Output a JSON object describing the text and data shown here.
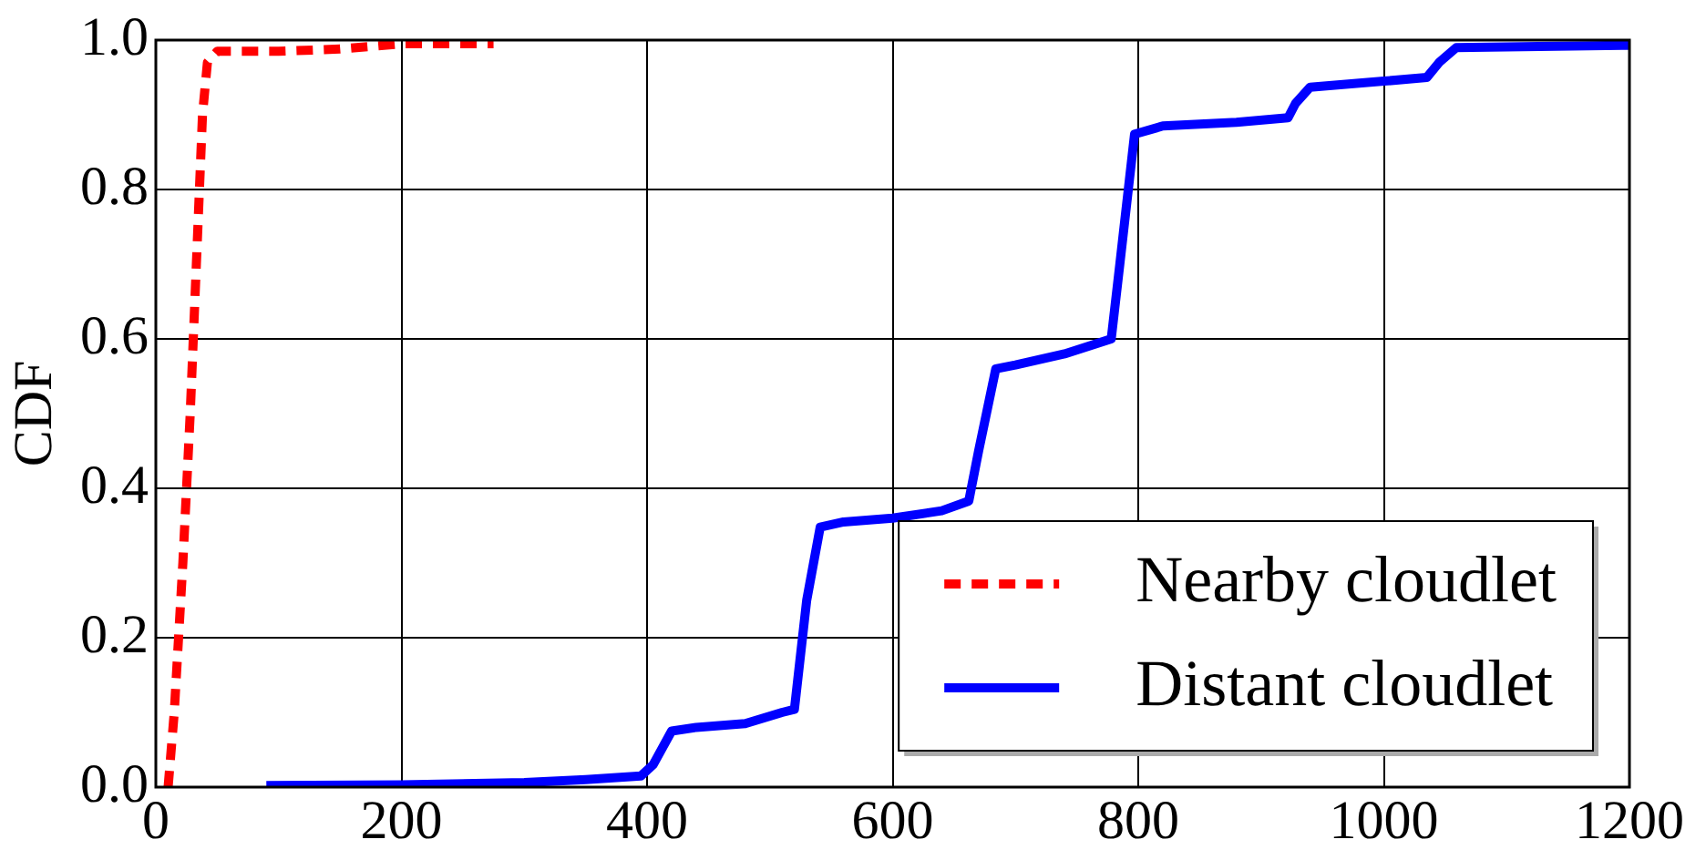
{
  "chart_data": {
    "type": "line",
    "ylabel": "CDF",
    "xlim": [
      0,
      1200
    ],
    "xticks": [
      0,
      200,
      400,
      600,
      800,
      1000,
      1200
    ],
    "ylim": [
      0,
      1
    ],
    "yticks": [
      {
        "value": 0,
        "label": "0.0"
      },
      {
        "value": 0.2,
        "label": "0.2"
      },
      {
        "value": 0.4,
        "label": "0.4"
      },
      {
        "value": 0.6,
        "label": "0.6"
      },
      {
        "value": 0.8,
        "label": "0.8"
      },
      {
        "value": 1,
        "label": "1.0"
      }
    ],
    "grid": true,
    "legend": "bottom right",
    "marker": "none",
    "series": [
      {
        "name": "Nearby cloudlet",
        "color": "#ff0000",
        "line_style": "dotted",
        "x": [
          10,
          15,
          22,
          28,
          33,
          38,
          42,
          50,
          100,
          150,
          200,
          275
        ],
        "values": [
          0,
          0.1,
          0.3,
          0.5,
          0.7,
          0.9,
          0.97,
          0.985,
          0.985,
          0.988,
          0.995,
          0.995
        ]
      },
      {
        "name": "Distant cloudlet",
        "color": "#0000ff",
        "line_style": "solid",
        "x": [
          90,
          200,
          300,
          350,
          395,
          405,
          420,
          440,
          480,
          510,
          520,
          530,
          541,
          560,
          600,
          640,
          662,
          670,
          684,
          700,
          740,
          778,
          785,
          797,
          820,
          880,
          922,
          928,
          940,
          1000,
          1035,
          1045,
          1059,
          1200
        ],
        "values": [
          0.002,
          0.003,
          0.006,
          0.01,
          0.015,
          0.03,
          0.075,
          0.08,
          0.085,
          0.1,
          0.104,
          0.25,
          0.348,
          0.355,
          0.36,
          0.37,
          0.383,
          0.45,
          0.56,
          0.565,
          0.58,
          0.6,
          0.7,
          0.874,
          0.885,
          0.89,
          0.896,
          0.915,
          0.937,
          0.945,
          0.95,
          0.97,
          0.99,
          0.993
        ]
      }
    ]
  }
}
